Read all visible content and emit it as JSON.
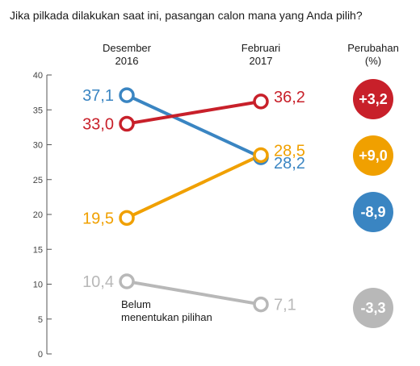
{
  "title": "Jika pilkada dilakukan saat ini, pasangan calon mana yang Anda pilih?",
  "columns": {
    "left": [
      "Desember",
      "2016"
    ],
    "right": [
      "Februari",
      "2017"
    ],
    "change": [
      "Perubahan",
      "(%)"
    ]
  },
  "annotation": [
    "Belum",
    "menentukan pilihan"
  ],
  "chart_data": {
    "type": "line",
    "x": [
      "Desember 2016",
      "Februari 2017"
    ],
    "ylim": [
      0,
      40
    ],
    "yticks": [
      "0",
      "5",
      "10",
      "15",
      "20",
      "25",
      "30",
      "35",
      "40"
    ],
    "grid": false,
    "series": [
      {
        "start": 37.1,
        "end": 28.2,
        "start_label": "37,1",
        "end_label": "28,2",
        "change": "-8,9",
        "color": "#3a85c2"
      },
      {
        "start": 33.0,
        "end": 36.2,
        "start_label": "33,0",
        "end_label": "36,2",
        "change": "+3,2",
        "color": "#c8202a"
      },
      {
        "start": 19.5,
        "end": 28.5,
        "start_label": "19,5",
        "end_label": "28,5",
        "change": "+9,0",
        "color": "#f0a000"
      },
      {
        "start": 10.4,
        "end": 7.1,
        "start_label": "10,4",
        "end_label": "7,1",
        "change": "-3,3",
        "color": "#b8b8b8",
        "name": "Belum menentukan pilihan"
      }
    ]
  }
}
